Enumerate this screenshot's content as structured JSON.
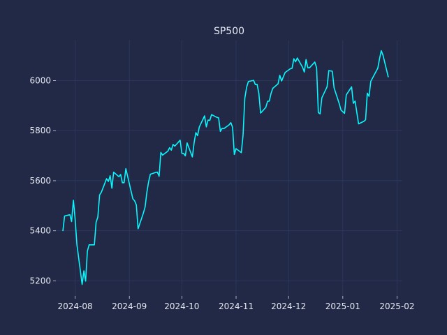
{
  "chart_data": {
    "type": "line",
    "title": "SP500",
    "xlabel": "",
    "ylabel": "",
    "grid": true,
    "line_color": "#08F7FE",
    "background_color": "#212946",
    "x_ticks": [
      "2024-08",
      "2024-09",
      "2024-10",
      "2024-11",
      "2024-12",
      "2025-01",
      "2025-02"
    ],
    "y_ticks": [
      5200,
      5400,
      5600,
      5800,
      6000
    ],
    "xlim": [
      "2024-07-21",
      "2025-02-04"
    ],
    "ylim": [
      5140,
      6160
    ],
    "series": [
      {
        "x": [
          "2024-07-25",
          "2024-07-26",
          "2024-07-29",
          "2024-07-30",
          "2024-07-31",
          "2024-08-01",
          "2024-08-02",
          "2024-08-05",
          "2024-08-06",
          "2024-08-07",
          "2024-08-08",
          "2024-08-09",
          "2024-08-12",
          "2024-08-13",
          "2024-08-14",
          "2024-08-15",
          "2024-08-16",
          "2024-08-19",
          "2024-08-20",
          "2024-08-21",
          "2024-08-22",
          "2024-08-23",
          "2024-08-26",
          "2024-08-27",
          "2024-08-28",
          "2024-08-29",
          "2024-08-30",
          "2024-09-03",
          "2024-09-04",
          "2024-09-05",
          "2024-09-06",
          "2024-09-09",
          "2024-09-10",
          "2024-09-11",
          "2024-09-12",
          "2024-09-13",
          "2024-09-16",
          "2024-09-17",
          "2024-09-18",
          "2024-09-19",
          "2024-09-20",
          "2024-09-23",
          "2024-09-24",
          "2024-09-25",
          "2024-09-26",
          "2024-09-27",
          "2024-09-30",
          "2024-10-01",
          "2024-10-02",
          "2024-10-03",
          "2024-10-04",
          "2024-10-07",
          "2024-10-08",
          "2024-10-09",
          "2024-10-10",
          "2024-10-11",
          "2024-10-14",
          "2024-10-15",
          "2024-10-16",
          "2024-10-17",
          "2024-10-18",
          "2024-10-21",
          "2024-10-22",
          "2024-10-23",
          "2024-10-24",
          "2024-10-25",
          "2024-10-28",
          "2024-10-29",
          "2024-10-30",
          "2024-10-31",
          "2024-11-01",
          "2024-11-04",
          "2024-11-05",
          "2024-11-06",
          "2024-11-07",
          "2024-11-08",
          "2024-11-11",
          "2024-11-12",
          "2024-11-13",
          "2024-11-14",
          "2024-11-15",
          "2024-11-18",
          "2024-11-19",
          "2024-11-20",
          "2024-11-21",
          "2024-11-22",
          "2024-11-25",
          "2024-11-26",
          "2024-11-27",
          "2024-11-29",
          "2024-12-02",
          "2024-12-03",
          "2024-12-04",
          "2024-12-05",
          "2024-12-06",
          "2024-12-09",
          "2024-12-10",
          "2024-12-11",
          "2024-12-12",
          "2024-12-13",
          "2024-12-16",
          "2024-12-17",
          "2024-12-18",
          "2024-12-19",
          "2024-12-20",
          "2024-12-23",
          "2024-12-24",
          "2024-12-26",
          "2024-12-27",
          "2024-12-30",
          "2024-12-31",
          "2025-01-02",
          "2025-01-03",
          "2025-01-06",
          "2025-01-07",
          "2025-01-08",
          "2025-01-10",
          "2025-01-13",
          "2025-01-14",
          "2025-01-15",
          "2025-01-16",
          "2025-01-17",
          "2025-01-21",
          "2025-01-22",
          "2025-01-23",
          "2025-01-24",
          "2025-01-27"
        ],
        "values": [
          5399,
          5459,
          5464,
          5437,
          5522,
          5446,
          5346,
          5186,
          5240,
          5199,
          5319,
          5344,
          5344,
          5434,
          5455,
          5543,
          5554,
          5608,
          5597,
          5620,
          5570,
          5634,
          5616,
          5625,
          5592,
          5592,
          5648,
          5528,
          5520,
          5503,
          5408,
          5471,
          5496,
          5554,
          5596,
          5626,
          5633,
          5634,
          5618,
          5713,
          5702,
          5718,
          5732,
          5722,
          5745,
          5738,
          5762,
          5709,
          5709,
          5699,
          5751,
          5695,
          5751,
          5792,
          5780,
          5815,
          5859,
          5815,
          5842,
          5841,
          5864,
          5853,
          5851,
          5797,
          5809,
          5808,
          5823,
          5832,
          5813,
          5705,
          5728,
          5712,
          5782,
          5929,
          5973,
          5996,
          6001,
          5984,
          5985,
          5949,
          5870,
          5893,
          5917,
          5918,
          5949,
          5969,
          5987,
          6021,
          5998,
          6032,
          6047,
          6049,
          6087,
          6075,
          6090,
          6053,
          6034,
          6084,
          6051,
          6051,
          6074,
          6051,
          5872,
          5867,
          5931,
          5975,
          6040,
          6037,
          5971,
          5907,
          5882,
          5869,
          5943,
          5975,
          5909,
          5918,
          5827,
          5837,
          5843,
          5950,
          5937,
          5997,
          6049,
          6087,
          6119,
          6101,
          6013
        ]
      }
    ]
  }
}
